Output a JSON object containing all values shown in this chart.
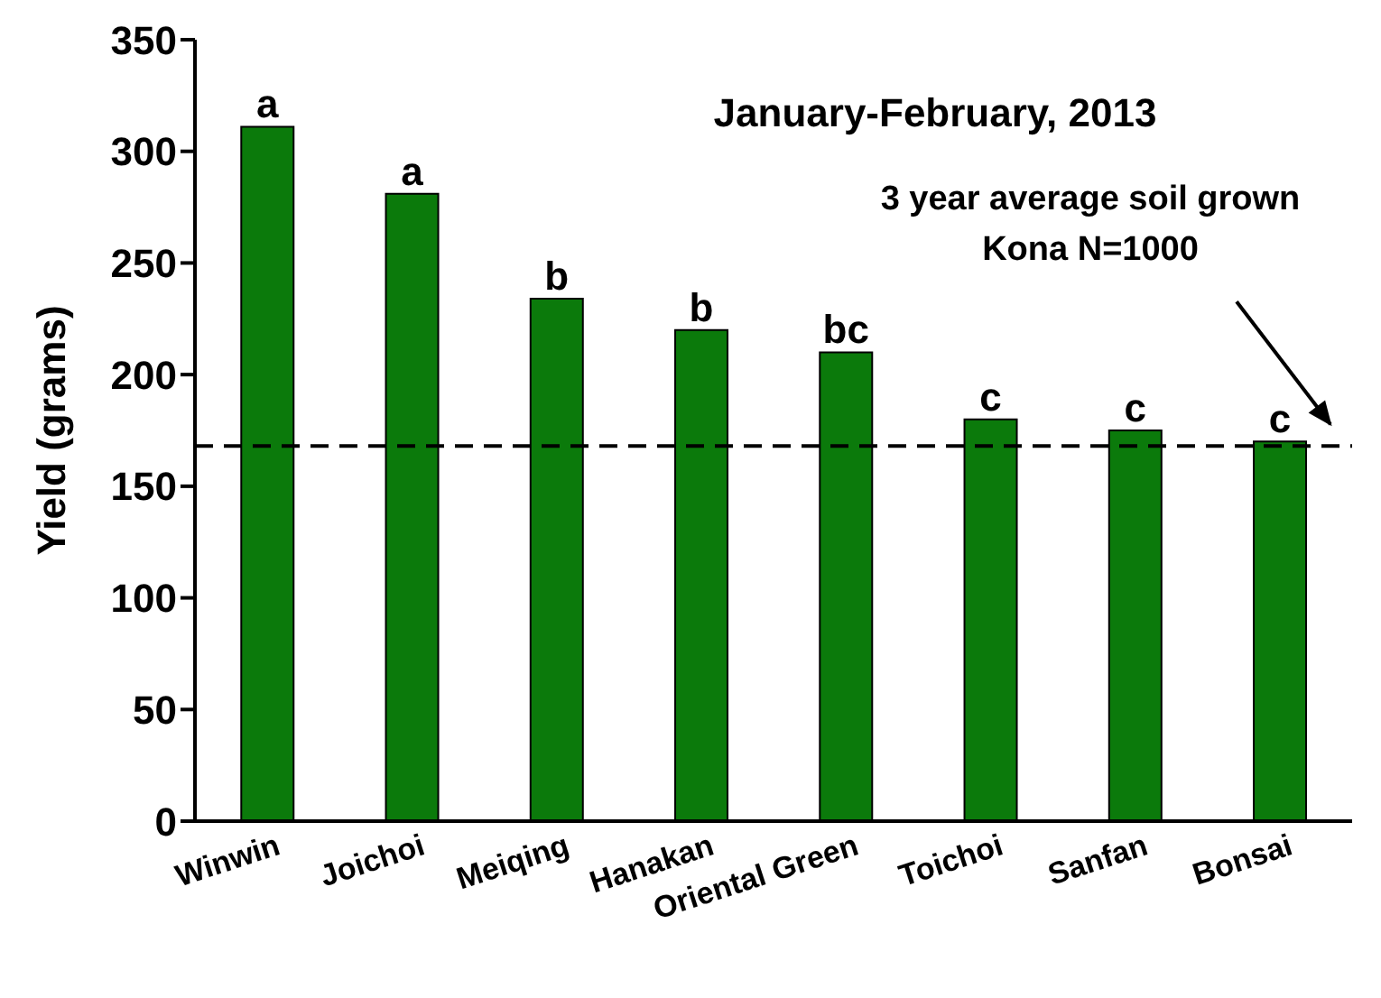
{
  "chart_data": {
    "type": "bar",
    "title": "January-February, 2013",
    "ylabel": "Yield (grams)",
    "categories": [
      "Winwin",
      "Joichoi",
      "Meiqing",
      "Hanakan",
      "Oriental Green",
      "Toichoi",
      "Sanfan",
      "Bonsai"
    ],
    "values": [
      311,
      281,
      234,
      220,
      210,
      180,
      175,
      170
    ],
    "value_labels": [
      "a",
      "a",
      "b",
      "b",
      "bc",
      "c",
      "c",
      "c"
    ],
    "color": "#0b7a0b",
    "ylim": [
      0,
      350
    ],
    "yticks": [
      0,
      50,
      100,
      150,
      200,
      250,
      300,
      350
    ],
    "grid": false,
    "legend": false,
    "annotations": [
      "3 year average soil grown\nKona N=1000"
    ],
    "ref_lines": [
      {
        "axis": "y",
        "value": 168,
        "line_style": "dashed",
        "color": "#000000"
      }
    ]
  }
}
